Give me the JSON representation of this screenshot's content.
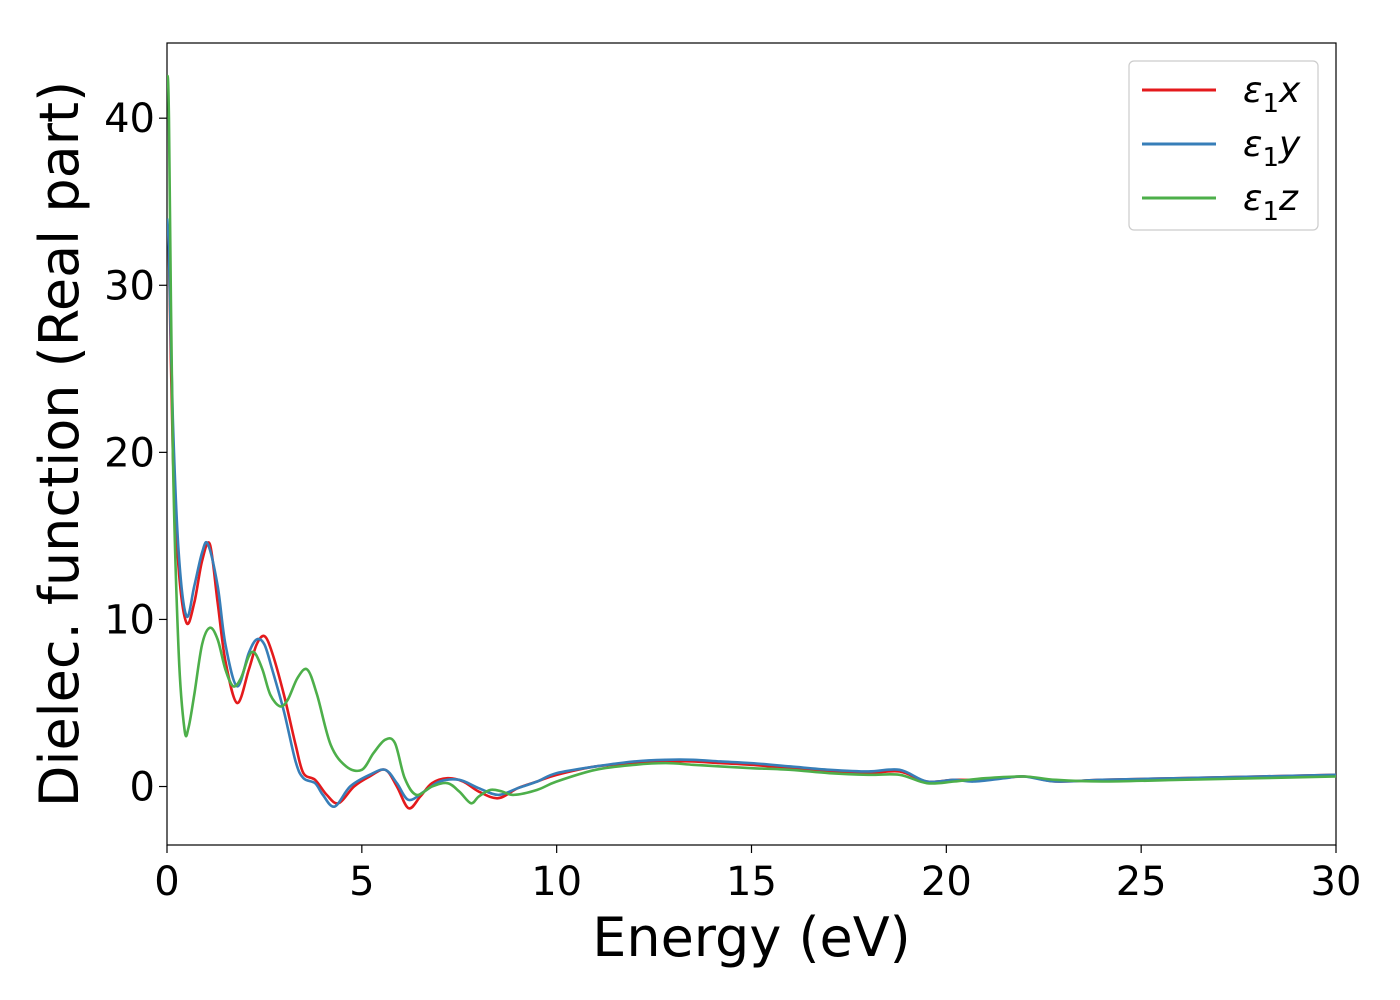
{
  "chart_data": {
    "type": "line",
    "title": "",
    "xlabel": "Energy (eV)",
    "ylabel": "Dielec. function (Real part)",
    "xlim": [
      0,
      30
    ],
    "ylim": [
      -3.5,
      44.5
    ],
    "xticks": [
      0,
      5,
      10,
      15,
      20,
      25,
      30
    ],
    "yticks": [
      0,
      10,
      20,
      30,
      40
    ],
    "grid": false,
    "legend_position": "top-right",
    "series": [
      {
        "name": "ε₁x",
        "legend_base": "ε",
        "legend_sub": "1",
        "legend_suffix": "x",
        "color": "#e41a1c",
        "x": [
          0,
          0.05,
          0.15,
          0.3,
          0.5,
          0.7,
          0.9,
          1.1,
          1.3,
          1.5,
          1.8,
          2.1,
          2.3,
          2.5,
          2.7,
          3.0,
          3.3,
          3.5,
          3.8,
          4.1,
          4.4,
          4.8,
          5.2,
          5.6,
          5.9,
          6.2,
          6.5,
          6.8,
          7.2,
          7.6,
          8.0,
          8.5,
          9.0,
          9.5,
          10,
          11,
          12,
          12.8,
          13.5,
          14.2,
          15,
          16,
          17,
          18,
          18.8,
          19.5,
          20.2,
          21,
          22,
          22.8,
          24,
          26,
          28,
          30
        ],
        "values": [
          33.5,
          32,
          20,
          13,
          9.8,
          11,
          13.5,
          14.5,
          11,
          7.5,
          5,
          7,
          8.5,
          9,
          8,
          5.5,
          2.5,
          0.8,
          0.4,
          -0.5,
          -1.0,
          0,
          0.6,
          1.0,
          0,
          -1.3,
          -0.6,
          0.2,
          0.5,
          0.3,
          -0.3,
          -0.7,
          -0.1,
          0.3,
          0.7,
          1.2,
          1.4,
          1.5,
          1.5,
          1.4,
          1.3,
          1.1,
          0.9,
          0.8,
          0.9,
          0.3,
          0.4,
          0.4,
          0.6,
          0.3,
          0.4,
          0.5,
          0.6,
          0.7
        ]
      },
      {
        "name": "ε₁y",
        "legend_base": "ε",
        "legend_sub": "1",
        "legend_suffix": "y",
        "color": "#377eb8",
        "x": [
          0,
          0.05,
          0.15,
          0.3,
          0.5,
          0.7,
          0.9,
          1.05,
          1.3,
          1.5,
          1.8,
          2.1,
          2.3,
          2.5,
          2.7,
          3.0,
          3.3,
          3.5,
          3.8,
          4.0,
          4.3,
          4.7,
          5.2,
          5.6,
          5.9,
          6.2,
          6.6,
          7.0,
          7.5,
          8.0,
          8.5,
          9.0,
          9.5,
          10,
          11,
          12,
          12.8,
          13.5,
          14.2,
          15,
          16,
          17,
          18,
          18.8,
          19.5,
          20.2,
          20.7,
          21.5,
          22,
          22.8,
          24,
          26,
          28,
          30
        ],
        "values": [
          34,
          32,
          22,
          14,
          10.2,
          12,
          14,
          14.5,
          12,
          8.5,
          6,
          8,
          8.8,
          8.5,
          7,
          4.5,
          1.5,
          0.5,
          0.2,
          -0.5,
          -1.2,
          0,
          0.7,
          1.0,
          0.2,
          -0.8,
          -0.3,
          0.3,
          0.4,
          -0.1,
          -0.5,
          -0.1,
          0.3,
          0.8,
          1.2,
          1.5,
          1.6,
          1.6,
          1.5,
          1.4,
          1.2,
          1.0,
          0.9,
          1.0,
          0.3,
          0.4,
          0.3,
          0.5,
          0.6,
          0.3,
          0.4,
          0.5,
          0.6,
          0.7
        ]
      },
      {
        "name": "ε₁z",
        "legend_base": "ε",
        "legend_sub": "1",
        "legend_suffix": "z",
        "color": "#4daf4a",
        "x": [
          0,
          0.05,
          0.15,
          0.3,
          0.45,
          0.55,
          0.7,
          0.9,
          1.1,
          1.3,
          1.5,
          1.7,
          1.9,
          2.1,
          2.25,
          2.45,
          2.65,
          2.9,
          3.1,
          3.35,
          3.6,
          3.85,
          4.2,
          4.6,
          5.0,
          5.3,
          5.6,
          5.85,
          6.1,
          6.4,
          6.8,
          7.2,
          7.5,
          7.8,
          8.0,
          8.3,
          8.6,
          8.9,
          9.5,
          10,
          11,
          12,
          12.8,
          13.5,
          14.2,
          15,
          16,
          17,
          18,
          18.8,
          19.5,
          20.2,
          21,
          22,
          22.8,
          24,
          26,
          28,
          30
        ],
        "values": [
          42.5,
          40,
          20,
          8,
          3.4,
          3.5,
          5.5,
          8.5,
          9.5,
          8.8,
          7,
          6,
          6.5,
          7.8,
          8,
          7,
          5.5,
          4.8,
          5.2,
          6.5,
          7,
          5.5,
          2.5,
          1.2,
          1.0,
          2.0,
          2.8,
          2.6,
          0.5,
          -0.5,
          0,
          0.2,
          -0.3,
          -1.0,
          -0.6,
          -0.2,
          -0.3,
          -0.5,
          -0.2,
          0.3,
          1.0,
          1.3,
          1.4,
          1.3,
          1.2,
          1.1,
          1.0,
          0.8,
          0.7,
          0.7,
          0.2,
          0.3,
          0.5,
          0.6,
          0.4,
          0.3,
          0.4,
          0.5,
          0.6
        ]
      }
    ]
  }
}
